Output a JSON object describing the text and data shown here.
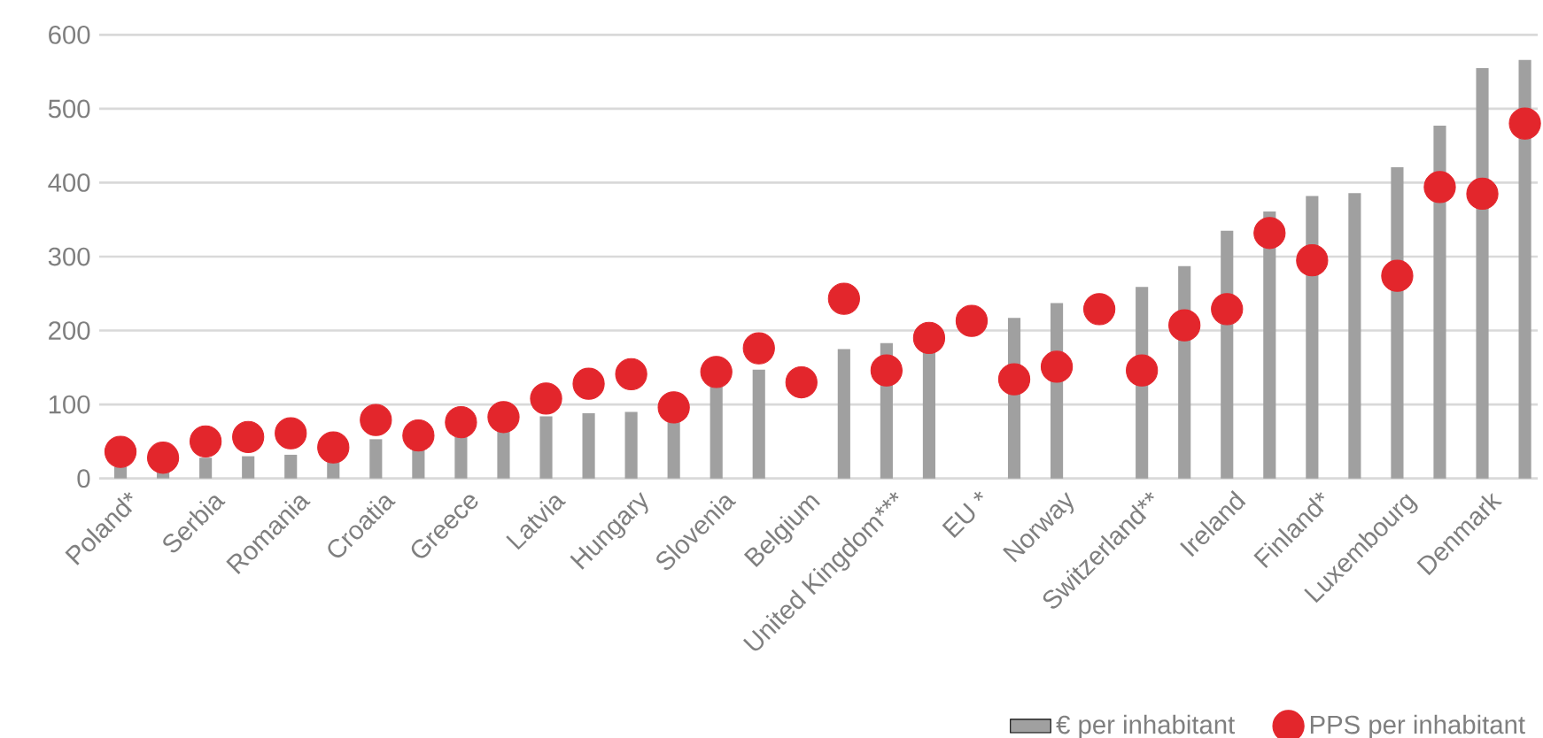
{
  "chart_data": {
    "type": "bar",
    "categories": [
      "Poland*",
      null,
      "Serbia",
      null,
      "Romania",
      null,
      "Croatia",
      null,
      "Greece",
      null,
      "Latvia",
      null,
      "Hungary",
      null,
      "Slovenia",
      null,
      "Belgium",
      null,
      "United Kingdom***",
      null,
      "EU *",
      null,
      "Norway",
      null,
      "Switzerland**",
      null,
      "Ireland",
      null,
      "Finland*",
      null,
      "Luxembourg",
      null,
      "Denmark",
      null
    ],
    "series": [
      {
        "name": "€ per inhabitant",
        "color": "#a0a0a0",
        "values": [
          16,
          8,
          28,
          30,
          32,
          22,
          53,
          40,
          56,
          64,
          84,
          88,
          90,
          76,
          127,
          147,
          null,
          175,
          183,
          175,
          null,
          217,
          237,
          null,
          259,
          287,
          335,
          361,
          382,
          386,
          421,
          477,
          555,
          566
        ]
      },
      {
        "name": "PPS per inhabitant",
        "type": "scatter",
        "color": "#e3262c",
        "values": [
          36,
          28,
          50,
          56,
          61,
          42,
          79,
          58,
          76,
          83,
          108,
          128,
          141,
          96,
          144,
          176,
          130,
          243,
          146,
          190,
          213,
          134,
          151,
          229,
          146,
          207,
          229,
          332,
          295,
          null,
          274,
          394,
          385,
          480
        ]
      }
    ],
    "ylim": [
      0,
      600
    ],
    "yticks": [
      0,
      100,
      200,
      300,
      400,
      500,
      600
    ],
    "grid": "y",
    "legend": "bottom right",
    "marker": "circle"
  }
}
